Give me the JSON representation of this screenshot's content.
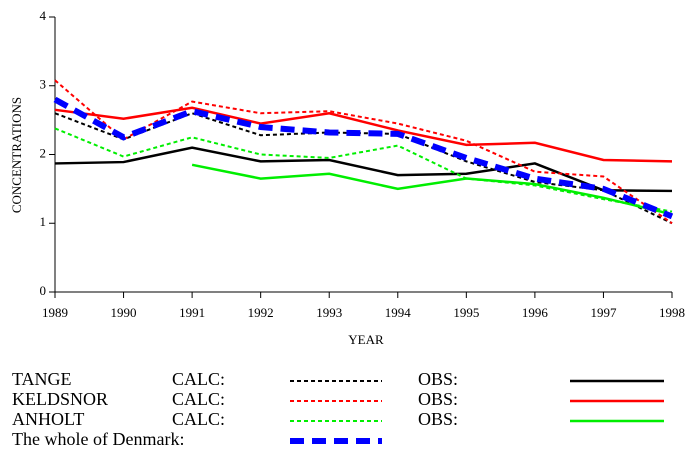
{
  "chart_data": {
    "type": "line",
    "x_label": "YEAR",
    "y_label": "CONCENTRATIONS",
    "x": [
      1989,
      1990,
      1991,
      1992,
      1993,
      1994,
      1995,
      1996,
      1997,
      1998
    ],
    "xlim": [
      1989,
      1998
    ],
    "xticks": [
      1989,
      1990,
      1991,
      1992,
      1993,
      1994,
      1995,
      1996,
      1997,
      1998
    ],
    "ylim": [
      0,
      4
    ],
    "yticks": [
      0,
      1,
      2,
      3,
      4
    ],
    "series": [
      {
        "name": "TANGE",
        "kind": "CALC:",
        "color": "#000000",
        "style": "dotted",
        "values": [
          2.6,
          2.22,
          2.6,
          2.28,
          2.32,
          2.3,
          1.9,
          1.6,
          1.48,
          1.0
        ]
      },
      {
        "name": "TANGE",
        "kind": "OBS:",
        "color": "#000000",
        "style": "solid",
        "values": [
          1.87,
          1.89,
          2.1,
          1.9,
          1.92,
          1.7,
          1.72,
          1.87,
          1.48,
          1.47
        ]
      },
      {
        "name": "KELDSNOR",
        "kind": "CALC:",
        "color": "#ff0000",
        "style": "dotted",
        "values": [
          3.08,
          2.22,
          2.77,
          2.6,
          2.63,
          2.45,
          2.2,
          1.75,
          1.68,
          1.0
        ]
      },
      {
        "name": "KELDSNOR",
        "kind": "OBS:",
        "color": "#ff0000",
        "style": "solid",
        "values": [
          2.65,
          2.52,
          2.68,
          2.45,
          2.6,
          2.35,
          2.14,
          2.17,
          1.92,
          1.9
        ]
      },
      {
        "name": "ANHOLT",
        "kind": "CALC:",
        "color": "#00ee00",
        "style": "dotted",
        "values": [
          2.38,
          1.97,
          2.25,
          2.0,
          1.95,
          2.13,
          1.65,
          1.55,
          1.35,
          1.17
        ]
      },
      {
        "name": "ANHOLT",
        "kind": "OBS:",
        "color": "#00ee00",
        "style": "solid",
        "values": [
          null,
          null,
          1.85,
          1.65,
          1.72,
          1.5,
          1.65,
          1.57,
          1.37,
          1.13
        ]
      },
      {
        "name": "The whole of Denmark:",
        "color": "#0000ff",
        "style": "dashed",
        "values": [
          2.8,
          2.25,
          2.63,
          2.4,
          2.32,
          2.3,
          1.95,
          1.65,
          1.5,
          1.1
        ]
      }
    ]
  }
}
